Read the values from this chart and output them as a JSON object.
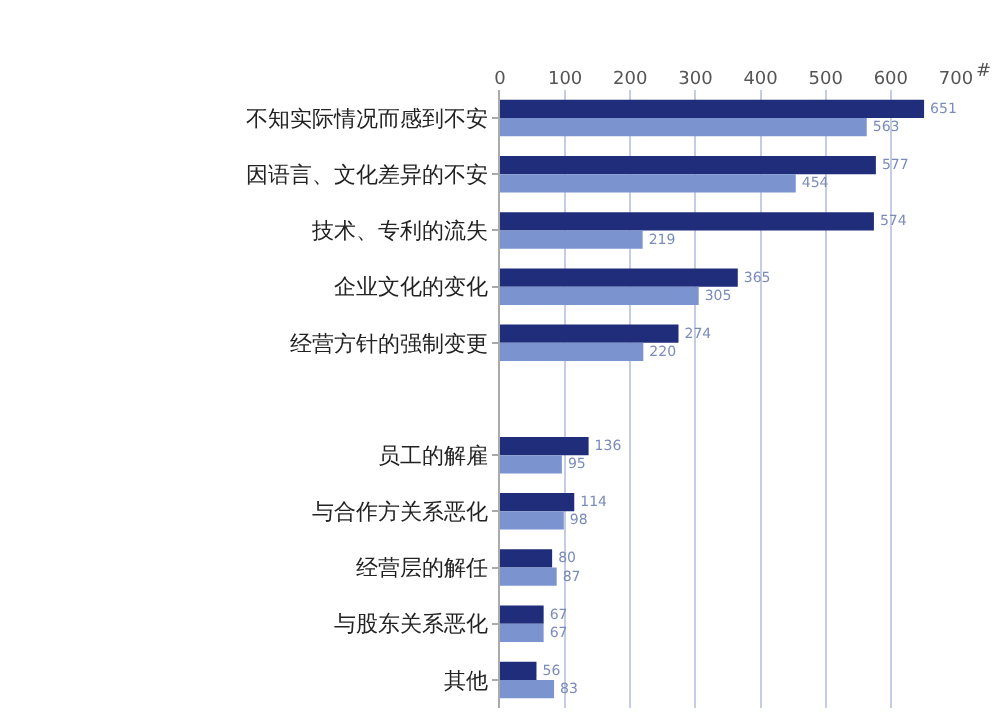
{
  "chart_data": {
    "type": "bar",
    "orientation": "horizontal",
    "xlabel": "#",
    "categories": [
      "不知实际情况而感到不安",
      "因语言、文化差异的不安",
      "技术、专利的流失",
      "企业文化的变化",
      "经营方针的强制变更",
      null,
      "员工的解雇",
      "与合作方关系恶化",
      "经营层的解任",
      "与股东关系恶化",
      "其他"
    ],
    "series": [
      {
        "color": "#1f2d7b",
        "values": [
          651,
          577,
          574,
          365,
          274,
          null,
          136,
          114,
          80,
          67,
          56
        ]
      },
      {
        "color": "#7b93cf",
        "values": [
          563,
          454,
          219,
          305,
          220,
          null,
          95,
          98,
          87,
          67,
          83
        ]
      }
    ],
    "xlim": [
      0,
      700
    ],
    "xticks": [
      0,
      100,
      200,
      300,
      400,
      500,
      600,
      700
    ],
    "grid": "x",
    "data_labels": true,
    "legend": false
  }
}
